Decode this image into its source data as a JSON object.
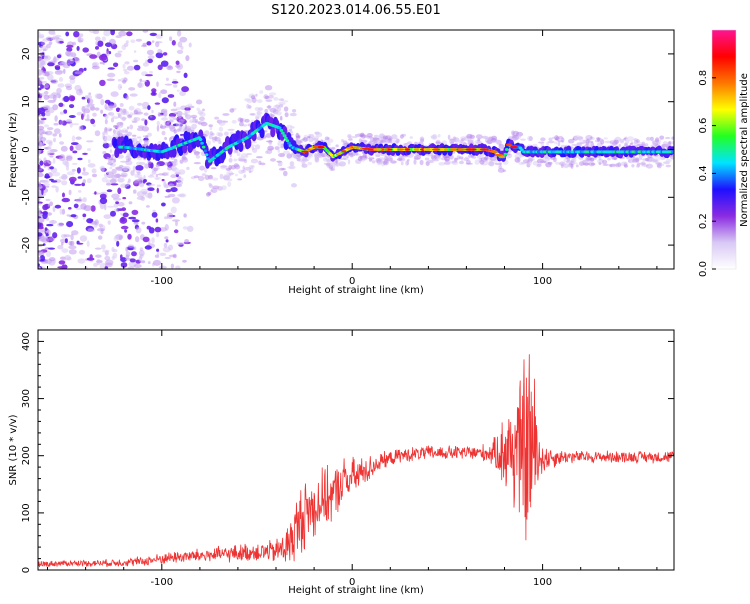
{
  "title": "S120.2023.014.06.55.E01",
  "chart_data": [
    {
      "type": "heatmap",
      "xlabel": "Height of straight line (km)",
      "ylabel": "Frequency (Hz)",
      "xlim": [
        -165,
        169
      ],
      "ylim": [
        -25,
        25
      ],
      "xticks": [
        -100,
        0,
        100
      ],
      "yticks": [
        -20,
        -10,
        0,
        10,
        20
      ],
      "colorbar": {
        "label": "Normalized spectral amplitude",
        "range": [
          0,
          1
        ],
        "ticks": [
          0.0,
          0.2,
          0.4,
          0.6,
          0.8
        ],
        "tick_labels": [
          "0.0",
          "0.2",
          "0.4",
          "0.6",
          "0.8"
        ],
        "colormap": [
          "#ffffff",
          "#d8c8f4",
          "#8a2be2",
          "#1e10ff",
          "#00e5ff",
          "#22ff22",
          "#ffff00",
          "#ff7700",
          "#ff0000",
          "#ff1493"
        ]
      },
      "ridge": {
        "x": [
          -120,
          -100,
          -80,
          -75,
          -65,
          -55,
          -45,
          -38,
          -32,
          -25,
          -20,
          -15,
          -10,
          0,
          10,
          20,
          30,
          40,
          50,
          60,
          70,
          75,
          78,
          80,
          82,
          85,
          88,
          90,
          100,
          120,
          140,
          169
        ],
        "y": [
          0.5,
          -0.5,
          2.5,
          -2.5,
          0.5,
          2.5,
          5.5,
          4.5,
          0.5,
          -0.5,
          0.5,
          0.5,
          -1.5,
          0.5,
          0.0,
          0.0,
          0.0,
          0.0,
          0.0,
          0.0,
          0.0,
          -0.5,
          -1.5,
          -1.5,
          1.0,
          0.5,
          0.5,
          -0.5,
          -0.5,
          -0.5,
          -0.5,
          -0.5
        ]
      }
    },
    {
      "type": "line",
      "xlabel": "Height of straight line (km)",
      "ylabel": "SNR (10 * v/v)",
      "xlim": [
        -165,
        169
      ],
      "ylim": [
        0,
        420
      ],
      "xticks": [
        -100,
        0,
        100
      ],
      "yticks": [
        0,
        100,
        200,
        300,
        400
      ],
      "color": "#ee3333",
      "series": [
        {
          "x": [
            -165,
            -150,
            -130,
            -110,
            -95,
            -80,
            -65,
            -50,
            -40,
            -33,
            -28,
            -25,
            -20,
            -15,
            -10,
            -5,
            0,
            5,
            10,
            15,
            20,
            25,
            30,
            40,
            50,
            60,
            70,
            75,
            80,
            85,
            88,
            90,
            92,
            93,
            95,
            98,
            100,
            110,
            120,
            130,
            140,
            150,
            160,
            169
          ],
          "y": [
            10,
            12,
            12,
            15,
            22,
            25,
            28,
            32,
            32,
            45,
            80,
            100,
            110,
            125,
            130,
            155,
            160,
            170,
            180,
            190,
            195,
            200,
            202,
            205,
            205,
            205,
            205,
            205,
            208,
            210,
            210,
            210,
            215,
            215,
            210,
            200,
            195,
            198,
            198,
            198,
            198,
            198,
            198,
            198
          ],
          "amplitude": [
            5,
            5,
            6,
            8,
            10,
            12,
            14,
            16,
            20,
            40,
            60,
            60,
            55,
            50,
            45,
            40,
            35,
            28,
            20,
            15,
            12,
            12,
            12,
            12,
            12,
            12,
            15,
            25,
            70,
            110,
            120,
            150,
            200,
            200,
            150,
            60,
            25,
            12,
            10,
            10,
            10,
            10,
            10,
            10
          ]
        }
      ]
    }
  ]
}
